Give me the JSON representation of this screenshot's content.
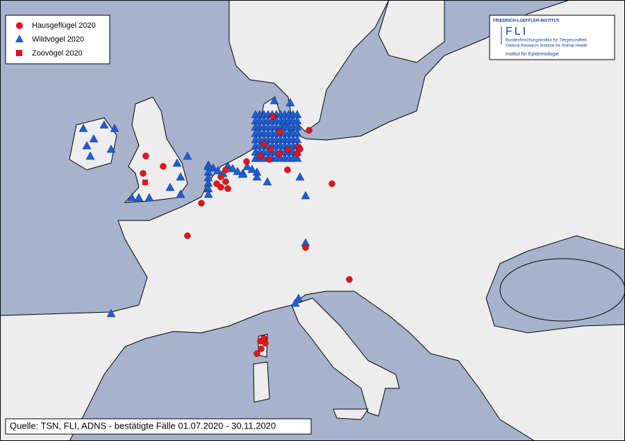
{
  "legend": {
    "items": [
      "Hausgeflügel 2020",
      "Wildvögel 2020",
      "Zoovögel 2020"
    ]
  },
  "logo": {
    "institute": "FRIEDRICH-LOEFFLER-INSTITUT",
    "acronym": "FLI",
    "german_name": "Bundesforschungsinstitut für Tiergesundheit",
    "english_name": "Federal Research Institute for Animal Health",
    "department": "Institut für Epidemiologie"
  },
  "source": "Quelle: TSN, FLI, ADNS - bestätigte Fälle 01.07.2020 - 30.11.2020"
}
